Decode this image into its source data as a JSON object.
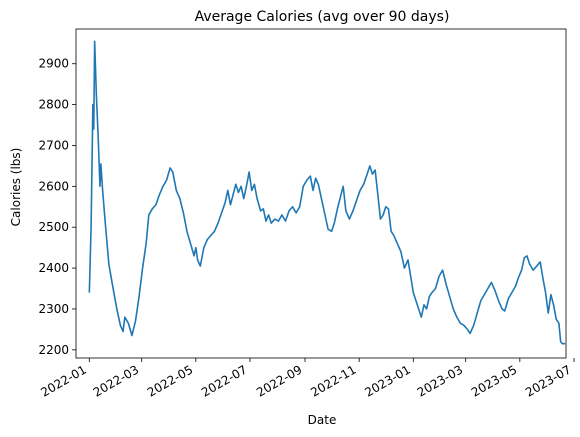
{
  "chart_data": {
    "type": "line",
    "title": "Average Calories (avg over 90 days)",
    "xlabel": "Date",
    "ylabel": "Calories (lbs)",
    "x_axis_type": "date",
    "xlim": [
      "2021-12-17",
      "2023-06-22"
    ],
    "ylim": [
      2180,
      2985
    ],
    "grid": false,
    "legend": "none",
    "x_ticks": [
      "2022-01-01",
      "2022-03-01",
      "2022-05-01",
      "2022-07-01",
      "2022-09-01",
      "2022-11-01",
      "2023-01-01",
      "2023-03-01",
      "2023-05-01",
      "2023-07-01"
    ],
    "x_tick_labels": [
      "2022-01",
      "2022-03",
      "2022-05",
      "2022-07",
      "2022-09",
      "2022-11",
      "2023-01",
      "2023-03",
      "2023-05",
      "2023-07"
    ],
    "y_ticks": [
      2200,
      2300,
      2400,
      2500,
      2600,
      2700,
      2800,
      2900
    ],
    "series": [
      {
        "color": "#1f77b4",
        "points": [
          [
            "2022-01-01",
            2340
          ],
          [
            "2022-01-03",
            2500
          ],
          [
            "2022-01-05",
            2800
          ],
          [
            "2022-01-06",
            2740
          ],
          [
            "2022-01-07",
            2955
          ],
          [
            "2022-01-09",
            2820
          ],
          [
            "2022-01-11",
            2720
          ],
          [
            "2022-01-13",
            2600
          ],
          [
            "2022-01-14",
            2655
          ],
          [
            "2022-01-16",
            2590
          ],
          [
            "2022-01-19",
            2510
          ],
          [
            "2022-01-23",
            2410
          ],
          [
            "2022-01-27",
            2360
          ],
          [
            "2022-02-01",
            2300
          ],
          [
            "2022-02-05",
            2260
          ],
          [
            "2022-02-08",
            2245
          ],
          [
            "2022-02-10",
            2280
          ],
          [
            "2022-02-14",
            2265
          ],
          [
            "2022-02-18",
            2235
          ],
          [
            "2022-02-22",
            2270
          ],
          [
            "2022-02-26",
            2330
          ],
          [
            "2022-03-02",
            2400
          ],
          [
            "2022-03-06",
            2460
          ],
          [
            "2022-03-09",
            2530
          ],
          [
            "2022-03-13",
            2545
          ],
          [
            "2022-03-17",
            2555
          ],
          [
            "2022-03-21",
            2580
          ],
          [
            "2022-03-25",
            2600
          ],
          [
            "2022-03-29",
            2615
          ],
          [
            "2022-04-02",
            2645
          ],
          [
            "2022-04-05",
            2635
          ],
          [
            "2022-04-09",
            2590
          ],
          [
            "2022-04-13",
            2570
          ],
          [
            "2022-04-17",
            2535
          ],
          [
            "2022-04-21",
            2490
          ],
          [
            "2022-04-25",
            2460
          ],
          [
            "2022-04-29",
            2430
          ],
          [
            "2022-05-01",
            2450
          ],
          [
            "2022-05-03",
            2420
          ],
          [
            "2022-05-06",
            2405
          ],
          [
            "2022-05-10",
            2450
          ],
          [
            "2022-05-14",
            2470
          ],
          [
            "2022-05-18",
            2480
          ],
          [
            "2022-05-22",
            2490
          ],
          [
            "2022-05-26",
            2510
          ],
          [
            "2022-05-30",
            2535
          ],
          [
            "2022-06-03",
            2560
          ],
          [
            "2022-06-06",
            2590
          ],
          [
            "2022-06-09",
            2555
          ],
          [
            "2022-06-12",
            2580
          ],
          [
            "2022-06-15",
            2605
          ],
          [
            "2022-06-18",
            2585
          ],
          [
            "2022-06-21",
            2600
          ],
          [
            "2022-06-24",
            2570
          ],
          [
            "2022-06-27",
            2600
          ],
          [
            "2022-06-30",
            2635
          ],
          [
            "2022-07-03",
            2590
          ],
          [
            "2022-07-06",
            2605
          ],
          [
            "2022-07-09",
            2570
          ],
          [
            "2022-07-13",
            2540
          ],
          [
            "2022-07-16",
            2545
          ],
          [
            "2022-07-19",
            2515
          ],
          [
            "2022-07-22",
            2530
          ],
          [
            "2022-07-25",
            2510
          ],
          [
            "2022-07-29",
            2520
          ],
          [
            "2022-08-02",
            2515
          ],
          [
            "2022-08-06",
            2530
          ],
          [
            "2022-08-10",
            2515
          ],
          [
            "2022-08-14",
            2540
          ],
          [
            "2022-08-18",
            2550
          ],
          [
            "2022-08-22",
            2535
          ],
          [
            "2022-08-26",
            2550
          ],
          [
            "2022-08-30",
            2600
          ],
          [
            "2022-09-03",
            2615
          ],
          [
            "2022-09-07",
            2625
          ],
          [
            "2022-09-10",
            2590
          ],
          [
            "2022-09-13",
            2620
          ],
          [
            "2022-09-16",
            2605
          ],
          [
            "2022-09-20",
            2565
          ],
          [
            "2022-09-24",
            2525
          ],
          [
            "2022-09-27",
            2495
          ],
          [
            "2022-10-01",
            2490
          ],
          [
            "2022-10-04",
            2510
          ],
          [
            "2022-10-08",
            2550
          ],
          [
            "2022-10-11",
            2575
          ],
          [
            "2022-10-14",
            2600
          ],
          [
            "2022-10-17",
            2540
          ],
          [
            "2022-10-21",
            2520
          ],
          [
            "2022-10-25",
            2540
          ],
          [
            "2022-10-29",
            2565
          ],
          [
            "2022-11-02",
            2590
          ],
          [
            "2022-11-06",
            2605
          ],
          [
            "2022-11-10",
            2630
          ],
          [
            "2022-11-13",
            2650
          ],
          [
            "2022-11-16",
            2630
          ],
          [
            "2022-11-19",
            2640
          ],
          [
            "2022-11-22",
            2580
          ],
          [
            "2022-11-25",
            2520
          ],
          [
            "2022-11-28",
            2530
          ],
          [
            "2022-12-01",
            2550
          ],
          [
            "2022-12-04",
            2545
          ],
          [
            "2022-12-07",
            2490
          ],
          [
            "2022-12-10",
            2480
          ],
          [
            "2022-12-14",
            2460
          ],
          [
            "2022-12-18",
            2440
          ],
          [
            "2022-12-22",
            2400
          ],
          [
            "2022-12-26",
            2420
          ],
          [
            "2022-12-29",
            2380
          ],
          [
            "2023-01-01",
            2340
          ],
          [
            "2023-01-04",
            2320
          ],
          [
            "2023-01-07",
            2300
          ],
          [
            "2023-01-10",
            2280
          ],
          [
            "2023-01-13",
            2310
          ],
          [
            "2023-01-16",
            2300
          ],
          [
            "2023-01-19",
            2330
          ],
          [
            "2023-01-22",
            2340
          ],
          [
            "2023-01-26",
            2350
          ],
          [
            "2023-01-30",
            2380
          ],
          [
            "2023-02-03",
            2395
          ],
          [
            "2023-02-07",
            2360
          ],
          [
            "2023-02-11",
            2330
          ],
          [
            "2023-02-15",
            2300
          ],
          [
            "2023-02-19",
            2280
          ],
          [
            "2023-02-23",
            2265
          ],
          [
            "2023-02-27",
            2260
          ],
          [
            "2023-03-03",
            2250
          ],
          [
            "2023-03-06",
            2240
          ],
          [
            "2023-03-10",
            2260
          ],
          [
            "2023-03-14",
            2290
          ],
          [
            "2023-03-18",
            2320
          ],
          [
            "2023-03-22",
            2335
          ],
          [
            "2023-03-26",
            2350
          ],
          [
            "2023-03-30",
            2365
          ],
          [
            "2023-04-03",
            2345
          ],
          [
            "2023-04-07",
            2320
          ],
          [
            "2023-04-11",
            2300
          ],
          [
            "2023-04-14",
            2295
          ],
          [
            "2023-04-18",
            2325
          ],
          [
            "2023-04-22",
            2340
          ],
          [
            "2023-04-26",
            2355
          ],
          [
            "2023-04-30",
            2380
          ],
          [
            "2023-05-03",
            2395
          ],
          [
            "2023-05-06",
            2425
          ],
          [
            "2023-05-09",
            2430
          ],
          [
            "2023-05-12",
            2410
          ],
          [
            "2023-05-16",
            2395
          ],
          [
            "2023-05-20",
            2405
          ],
          [
            "2023-05-24",
            2415
          ],
          [
            "2023-05-27",
            2375
          ],
          [
            "2023-05-30",
            2340
          ],
          [
            "2023-06-02",
            2290
          ],
          [
            "2023-06-05",
            2335
          ],
          [
            "2023-06-08",
            2310
          ],
          [
            "2023-06-11",
            2275
          ],
          [
            "2023-06-14",
            2265
          ],
          [
            "2023-06-16",
            2220
          ],
          [
            "2023-06-18",
            2215
          ],
          [
            "2023-06-21",
            2215
          ]
        ]
      }
    ]
  }
}
